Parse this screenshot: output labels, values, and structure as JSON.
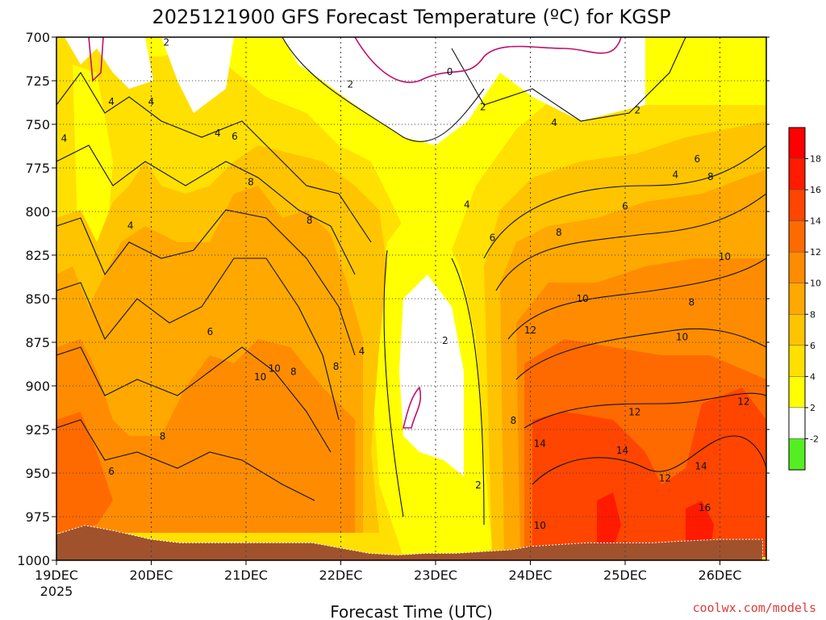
{
  "chart_data": {
    "type": "contour",
    "title": "2025121900 GFS Forecast Temperature (ºC) for KGSP",
    "xlabel": "Forecast Time (UTC)",
    "ylabel": "",
    "x_ticks": [
      "19DEC",
      "20DEC",
      "21DEC",
      "22DEC",
      "23DEC",
      "24DEC",
      "25DEC",
      "26DEC"
    ],
    "x_year": "2025",
    "y_ticks": [
      700,
      725,
      750,
      775,
      800,
      825,
      850,
      875,
      900,
      925,
      950,
      975,
      1000
    ],
    "ylim": [
      1000,
      700
    ],
    "xlim_days": [
      0,
      7.45
    ],
    "colorbar": {
      "levels": [
        "-2",
        "2",
        "4",
        "6",
        "8",
        "10",
        "12",
        "14",
        "16",
        "18"
      ],
      "colors": [
        "#55ee22",
        "#ffffff",
        "#ffff00",
        "#ffe000",
        "#ffc400",
        "#ffa800",
        "#ff8c00",
        "#ff6a00",
        "#ff4500",
        "#ff1a00",
        "#ff0000"
      ]
    },
    "surface_pressure_hpa": [
      [
        0,
        985
      ],
      [
        0.3,
        980
      ],
      [
        0.6,
        983
      ],
      [
        1.0,
        988
      ],
      [
        1.3,
        990
      ],
      [
        1.7,
        990
      ],
      [
        2.2,
        990
      ],
      [
        2.7,
        990
      ],
      [
        3.0,
        993
      ],
      [
        3.3,
        996
      ],
      [
        3.6,
        997
      ],
      [
        3.9,
        996
      ],
      [
        4.2,
        996
      ],
      [
        4.5,
        995
      ],
      [
        4.8,
        994
      ],
      [
        5.0,
        992
      ],
      [
        5.3,
        991
      ],
      [
        5.6,
        990
      ],
      [
        5.9,
        990
      ],
      [
        6.3,
        990
      ],
      [
        6.6,
        989
      ],
      [
        7.0,
        988
      ],
      [
        7.45,
        988
      ]
    ],
    "contour_labels": [
      {
        "text": "2",
        "d": 1.16,
        "p": 703
      },
      {
        "text": "4",
        "d": 0.58,
        "p": 737
      },
      {
        "text": "4",
        "d": 1.0,
        "p": 737
      },
      {
        "text": "4",
        "d": 0.08,
        "p": 758
      },
      {
        "text": "4",
        "d": 1.7,
        "p": 755
      },
      {
        "text": "6",
        "d": 1.88,
        "p": 757
      },
      {
        "text": "8",
        "d": 2.05,
        "p": 783
      },
      {
        "text": "4",
        "d": 0.78,
        "p": 808
      },
      {
        "text": "8",
        "d": 2.67,
        "p": 805
      },
      {
        "text": "2",
        "d": 3.1,
        "p": 727
      },
      {
        "text": "0",
        "d": 4.15,
        "p": 720
      },
      {
        "text": "2",
        "d": 4.5,
        "p": 740
      },
      {
        "text": "4",
        "d": 5.25,
        "p": 749
      },
      {
        "text": "2",
        "d": 6.13,
        "p": 742
      },
      {
        "text": "4",
        "d": 4.33,
        "p": 796
      },
      {
        "text": "6",
        "d": 4.6,
        "p": 815
      },
      {
        "text": "6",
        "d": 6.0,
        "p": 797
      },
      {
        "text": "6",
        "d": 6.76,
        "p": 770
      },
      {
        "text": "4",
        "d": 6.53,
        "p": 779
      },
      {
        "text": "8",
        "d": 6.9,
        "p": 780
      },
      {
        "text": "8",
        "d": 5.3,
        "p": 812
      },
      {
        "text": "10",
        "d": 7.05,
        "p": 826
      },
      {
        "text": "10",
        "d": 5.55,
        "p": 850
      },
      {
        "text": "8",
        "d": 6.7,
        "p": 852
      },
      {
        "text": "6",
        "d": 1.62,
        "p": 869
      },
      {
        "text": "4",
        "d": 3.22,
        "p": 880
      },
      {
        "text": "2",
        "d": 4.1,
        "p": 874
      },
      {
        "text": "12",
        "d": 5.0,
        "p": 868
      },
      {
        "text": "10",
        "d": 6.6,
        "p": 872
      },
      {
        "text": "10",
        "d": 2.15,
        "p": 895
      },
      {
        "text": "10",
        "d": 2.3,
        "p": 890
      },
      {
        "text": "8",
        "d": 2.5,
        "p": 892
      },
      {
        "text": "8",
        "d": 2.95,
        "p": 889
      },
      {
        "text": "12",
        "d": 7.25,
        "p": 909
      },
      {
        "text": "8",
        "d": 1.12,
        "p": 929
      },
      {
        "text": "8",
        "d": 4.82,
        "p": 920
      },
      {
        "text": "12",
        "d": 6.1,
        "p": 915
      },
      {
        "text": "6",
        "d": 0.58,
        "p": 949
      },
      {
        "text": "14",
        "d": 5.1,
        "p": 933
      },
      {
        "text": "14",
        "d": 5.97,
        "p": 937
      },
      {
        "text": "2",
        "d": 4.45,
        "p": 957
      },
      {
        "text": "12",
        "d": 6.42,
        "p": 953
      },
      {
        "text": "14",
        "d": 6.8,
        "p": 946
      },
      {
        "text": "16",
        "d": 6.84,
        "p": 970
      },
      {
        "text": "10",
        "d": 5.1,
        "p": 980
      }
    ]
  },
  "credit": "coolwx.com/models"
}
